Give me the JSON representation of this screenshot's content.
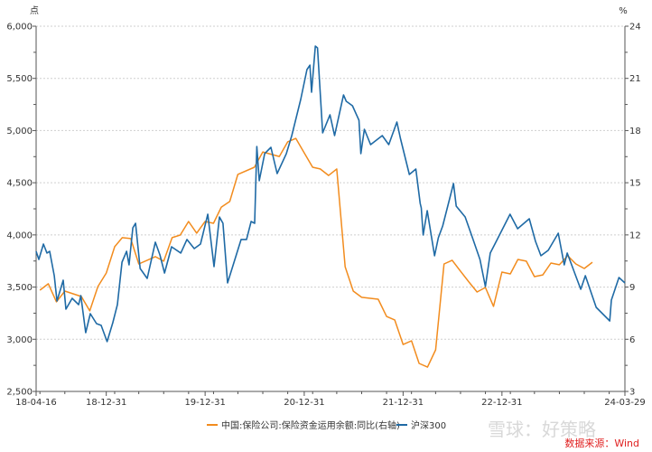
{
  "chart_data": {
    "type": "line",
    "left_unit": "点",
    "right_unit": "%",
    "y_left": {
      "min": 2500,
      "max": 6000,
      "ticks": [
        "2,500",
        "3,000",
        "3,500",
        "4,000",
        "4,500",
        "5,000",
        "5,500",
        "6,000"
      ]
    },
    "y_right": {
      "min": 3,
      "max": 24,
      "ticks": [
        "3",
        "6",
        "9",
        "12",
        "15",
        "18",
        "21",
        "24"
      ]
    },
    "x_range": [
      "2018-04-16",
      "2024-03-29"
    ],
    "x_ticks": [
      "18-04-16",
      "18-12-31",
      "19-12-31",
      "20-12-31",
      "21-12-31",
      "22-12-31",
      "24-03-29"
    ],
    "grid": "horizontal-dotted",
    "legend_placement": "bottom",
    "source": "数据来源：Wind",
    "watermark": "雪球：好策略",
    "colors": {
      "insurance": "#f28c1e",
      "csi300": "#1f6aa5"
    },
    "series": [
      {
        "name": "中国:保险公司:保险资金运用余额:同比(右轴)",
        "axis": "right",
        "x": [
          "2018-04",
          "2018-05",
          "2018-06",
          "2018-07",
          "2018-09",
          "2018-10",
          "2018-11",
          "2018-12",
          "2019-01",
          "2019-02",
          "2019-03",
          "2019-04",
          "2019-06",
          "2019-07",
          "2019-08",
          "2019-09",
          "2019-10",
          "2019-11",
          "2019-12",
          "2020-01",
          "2020-02",
          "2020-03",
          "2020-04",
          "2020-06",
          "2020-07",
          "2020-09",
          "2020-10",
          "2020-11",
          "2020-12",
          "2021-01",
          "2021-02",
          "2021-03",
          "2021-04",
          "2021-05",
          "2021-06",
          "2021-07",
          "2021-09",
          "2021-10",
          "2021-11",
          "2021-12",
          "2022-01",
          "2022-02",
          "2022-03",
          "2022-04",
          "2022-05",
          "2022-06",
          "2022-07",
          "2022-08",
          "2022-09",
          "2022-10",
          "2022-11",
          "2022-12",
          "2023-01",
          "2023-02",
          "2023-03",
          "2023-04",
          "2023-05",
          "2023-06",
          "2023-07",
          "2023-08",
          "2023-09",
          "2023-10",
          "2023-11"
        ],
        "values": [
          8.82,
          9.19,
          8.15,
          8.77,
          8.46,
          7.63,
          9.03,
          9.81,
          11.32,
          11.84,
          11.79,
          10.33,
          10.75,
          10.49,
          11.84,
          11.99,
          12.77,
          12.1,
          12.77,
          12.67,
          13.6,
          13.92,
          15.48,
          15.89,
          16.77,
          16.51,
          17.35,
          17.55,
          16.72,
          15.89,
          15.79,
          15.42,
          15.79,
          10.17,
          8.77,
          8.41,
          8.3,
          7.31,
          7.11,
          5.7,
          5.91,
          4.61,
          4.4,
          5.39,
          10.33,
          10.54,
          9.91,
          9.29,
          8.72,
          8.98,
          7.89,
          9.86,
          9.76,
          10.59,
          10.49,
          9.6,
          9.7,
          10.38,
          10.28,
          10.8,
          10.33,
          10.07,
          10.43
        ]
      },
      {
        "name": "沪深300",
        "axis": "left",
        "x": [
          "2018-04-16",
          "2018-04-26",
          "2018-05-13",
          "2018-05-26",
          "2018-06-05",
          "2018-06-22",
          "2018-07-02",
          "2018-07-25",
          "2018-08-04",
          "2018-08-27",
          "2018-09-20",
          "2018-09-28",
          "2018-10-16",
          "2018-11-02",
          "2018-11-25",
          "2018-12-12",
          "2019-01-03",
          "2019-01-24",
          "2019-02-10",
          "2019-02-27",
          "2019-03-16",
          "2019-03-25",
          "2019-04-08",
          "2019-04-18",
          "2019-05-05",
          "2019-05-31",
          "2019-06-30",
          "2019-07-17",
          "2019-08-03",
          "2019-08-29",
          "2019-10-02",
          "2019-10-25",
          "2019-11-21",
          "2019-12-14",
          "2020-01-10",
          "2020-02-02",
          "2020-02-22",
          "2020-03-06",
          "2020-03-23",
          "2020-04-19",
          "2020-05-12",
          "2020-06-01",
          "2020-06-18",
          "2020-07-01",
          "2020-07-09",
          "2020-07-18",
          "2020-08-07",
          "2020-08-30",
          "2020-09-22",
          "2020-10-26",
          "2020-11-15",
          "2020-12-18",
          "2021-01-10",
          "2021-01-21",
          "2021-01-27",
          "2021-02-10",
          "2021-02-18",
          "2021-03-09",
          "2021-04-05",
          "2021-04-22",
          "2021-05-25",
          "2021-06-04",
          "2021-06-27",
          "2021-07-21",
          "2021-07-28",
          "2021-08-10",
          "2021-09-02",
          "2021-10-15",
          "2021-11-08",
          "2021-12-08",
          "2021-12-21",
          "2022-01-23",
          "2022-02-16",
          "2022-03-04",
          "2022-03-08",
          "2022-03-15",
          "2022-03-30",
          "2022-04-26",
          "2022-05-10",
          "2022-05-26",
          "2022-07-05",
          "2022-07-15",
          "2022-08-17",
          "2022-09-13",
          "2022-10-11",
          "2022-10-31",
          "2022-11-18",
          "2022-12-05",
          "2023-01-30",
          "2023-02-27",
          "2023-04-11",
          "2023-05-04",
          "2023-05-24",
          "2023-06-20",
          "2023-07-27",
          "2023-08-18",
          "2023-08-29",
          "2023-10-18",
          "2023-11-04",
          "2023-12-14",
          "2024-02-02",
          "2024-02-08",
          "2024-03-07",
          "2024-03-29"
        ],
        "values": [
          3843,
          3765,
          3912,
          3826,
          3843,
          3609,
          3366,
          3566,
          3288,
          3392,
          3332,
          3418,
          3063,
          3245,
          3150,
          3133,
          2977,
          3158,
          3332,
          3739,
          3843,
          3713,
          4068,
          4111,
          3678,
          3583,
          3930,
          3808,
          3635,
          3886,
          3826,
          3956,
          3869,
          3912,
          4198,
          3696,
          4172,
          4111,
          3540,
          3765,
          3956,
          3956,
          4129,
          4111,
          4848,
          4519,
          4779,
          4839,
          4588,
          4779,
          4952,
          5298,
          5584,
          5627,
          5368,
          5809,
          5792,
          4978,
          5151,
          4952,
          5342,
          5281,
          5238,
          5099,
          4779,
          5012,
          4865,
          4952,
          4865,
          5082,
          4926,
          4579,
          4631,
          4302,
          4259,
          3999,
          4233,
          3800,
          3973,
          4085,
          4493,
          4276,
          4172,
          3973,
          3765,
          3505,
          3826,
          3912,
          4198,
          4059,
          4155,
          3938,
          3800,
          3852,
          4016,
          3713,
          3826,
          3479,
          3609,
          3306,
          3176,
          3375,
          3592,
          3540
        ]
      }
    ]
  }
}
